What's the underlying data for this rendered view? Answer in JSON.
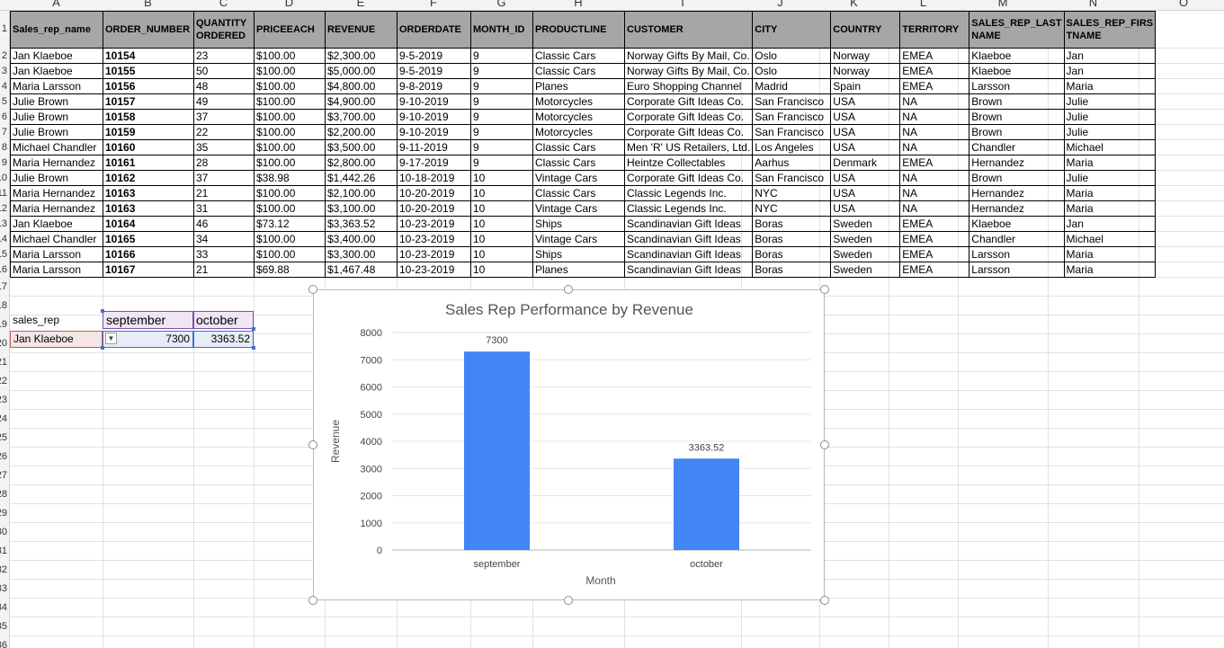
{
  "columns": [
    "A",
    "B",
    "C",
    "D",
    "E",
    "F",
    "G",
    "H",
    "I",
    "J",
    "K",
    "L",
    "M",
    "N",
    "O"
  ],
  "row_numbers": [
    "1",
    "2",
    "3",
    "4",
    "5",
    "6",
    "7",
    "8",
    "9",
    "10",
    "11",
    "12",
    "13",
    "14",
    "15",
    "16",
    "17",
    "18",
    "19",
    "20",
    "21",
    "22",
    "23",
    "24",
    "25",
    "26",
    "27",
    "28",
    "29",
    "30",
    "31",
    "32",
    "33",
    "34",
    "35",
    "36",
    "37"
  ],
  "table": {
    "headers": [
      "Sales_rep_name",
      "ORDER_NUMBER",
      "QUANTITY ORDERED",
      "PRICEEACH",
      "REVENUE",
      "ORDERDATE",
      "MONTH_ID",
      "PRODUCTLINE",
      "CUSTOMER",
      "CITY",
      "COUNTRY",
      "TERRITORY",
      "SALES_REP_LAST NAME",
      "SALES_REP_FIRS TNAME"
    ],
    "rows": [
      [
        "Jan Klaeboe",
        "10154",
        "23",
        "$100.00",
        "$2,300.00",
        "9-5-2019",
        "9",
        "Classic Cars",
        "Norway Gifts By Mail, Co.",
        "Oslo",
        "Norway",
        "EMEA",
        "Klaeboe",
        "Jan"
      ],
      [
        "Jan Klaeboe",
        "10155",
        "50",
        "$100.00",
        "$5,000.00",
        "9-5-2019",
        "9",
        "Classic Cars",
        "Norway Gifts By Mail, Co.",
        "Oslo",
        "Norway",
        "EMEA",
        "Klaeboe",
        "Jan"
      ],
      [
        "Maria Larsson",
        "10156",
        "48",
        "$100.00",
        "$4,800.00",
        "9-8-2019",
        "9",
        "Planes",
        "Euro Shopping Channel",
        "Madrid",
        "Spain",
        "EMEA",
        "Larsson",
        "Maria"
      ],
      [
        "Julie Brown",
        "10157",
        "49",
        "$100.00",
        "$4,900.00",
        "9-10-2019",
        "9",
        "Motorcycles",
        "Corporate Gift Ideas Co.",
        "San Francisco",
        "USA",
        "NA",
        "Brown",
        "Julie"
      ],
      [
        "Julie Brown",
        "10158",
        "37",
        "$100.00",
        "$3,700.00",
        "9-10-2019",
        "9",
        "Motorcycles",
        "Corporate Gift Ideas Co.",
        "San Francisco",
        "USA",
        "NA",
        "Brown",
        "Julie"
      ],
      [
        "Julie Brown",
        "10159",
        "22",
        "$100.00",
        "$2,200.00",
        "9-10-2019",
        "9",
        "Motorcycles",
        "Corporate Gift Ideas Co.",
        "San Francisco",
        "USA",
        "NA",
        "Brown",
        "Julie"
      ],
      [
        "Michael Chandler",
        "10160",
        "35",
        "$100.00",
        "$3,500.00",
        "9-11-2019",
        "9",
        "Classic Cars",
        "Men 'R' US Retailers, Ltd.",
        "Los Angeles",
        "USA",
        "NA",
        "Chandler",
        "Michael"
      ],
      [
        "Maria Hernandez",
        "10161",
        "28",
        "$100.00",
        "$2,800.00",
        "9-17-2019",
        "9",
        "Classic Cars",
        "Heintze Collectables",
        "Aarhus",
        "Denmark",
        "EMEA",
        "Hernandez",
        "Maria"
      ],
      [
        "Julie Brown",
        "10162",
        "37",
        "$38.98",
        "$1,442.26",
        "10-18-2019",
        "10",
        "Vintage Cars",
        "Corporate Gift Ideas Co.",
        "San Francisco",
        "USA",
        "NA",
        "Brown",
        "Julie"
      ],
      [
        "Maria Hernandez",
        "10163",
        "21",
        "$100.00",
        "$2,100.00",
        "10-20-2019",
        "10",
        "Classic Cars",
        "Classic Legends Inc.",
        "NYC",
        "USA",
        "NA",
        "Hernandez",
        "Maria"
      ],
      [
        "Maria Hernandez",
        "10163",
        "31",
        "$100.00",
        "$3,100.00",
        "10-20-2019",
        "10",
        "Vintage Cars",
        "Classic Legends Inc.",
        "NYC",
        "USA",
        "NA",
        "Hernandez",
        "Maria"
      ],
      [
        "Jan Klaeboe",
        "10164",
        "46",
        "$73.12",
        "$3,363.52",
        "10-23-2019",
        "10",
        "Ships",
        "Scandinavian Gift Ideas",
        "Boras",
        "Sweden",
        "EMEA",
        "Klaeboe",
        "Jan"
      ],
      [
        "Michael Chandler",
        "10165",
        "34",
        "$100.00",
        "$3,400.00",
        "10-23-2019",
        "10",
        "Vintage Cars",
        "Scandinavian Gift Ideas",
        "Boras",
        "Sweden",
        "EMEA",
        "Chandler",
        "Michael"
      ],
      [
        "Maria Larsson",
        "10166",
        "33",
        "$100.00",
        "$3,300.00",
        "10-23-2019",
        "10",
        "Ships",
        "Scandinavian Gift Ideas",
        "Boras",
        "Sweden",
        "EMEA",
        "Larsson",
        "Maria"
      ],
      [
        "Maria Larsson",
        "10167",
        "21",
        "$69.88",
        "$1,467.48",
        "10-23-2019",
        "10",
        "Planes",
        "Scandinavian Gift Ideas",
        "Boras",
        "Sweden",
        "EMEA",
        "Larsson",
        "Maria"
      ]
    ]
  },
  "pivot": {
    "label": "sales_rep",
    "col1": "september",
    "col2": "october",
    "rep": "Jan Klaeboe",
    "val1": "7300",
    "val2": "3363.52"
  },
  "chart_data": {
    "type": "bar",
    "title": "Sales Rep Performance by Revenue",
    "xlabel": "Month",
    "ylabel": "Revenue",
    "categories": [
      "september",
      "october"
    ],
    "values": [
      7300,
      3363.52
    ],
    "value_labels": [
      "7300",
      "3363.52"
    ],
    "ylim": [
      0,
      8000
    ],
    "yticks": [
      "0",
      "1000",
      "2000",
      "3000",
      "4000",
      "5000",
      "6000",
      "7000",
      "8000"
    ],
    "grid": true,
    "bar_color": "#4285f4"
  }
}
